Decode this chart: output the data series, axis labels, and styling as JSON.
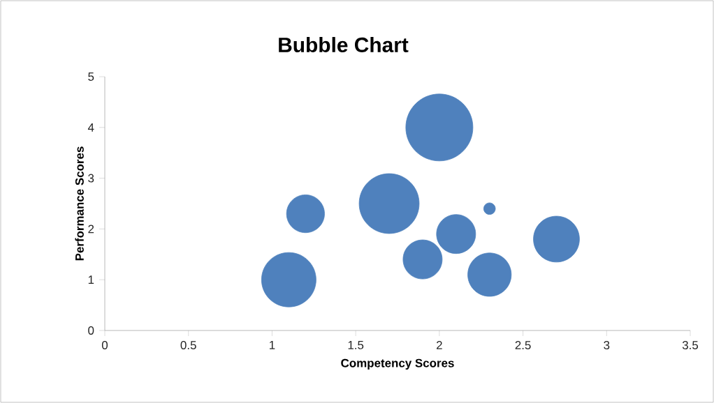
{
  "chart_data": {
    "type": "bubble",
    "title": "Bubble Chart",
    "xlabel": "Competency  Scores",
    "ylabel": "Performance Scores",
    "color": "#4f81bd",
    "x": [
      1.1,
      1.2,
      1.7,
      1.9,
      2.0,
      2.1,
      2.3,
      2.3,
      2.7
    ],
    "values": [
      1.0,
      2.3,
      2.5,
      1.4,
      4.0,
      1.9,
      1.1,
      2.4,
      1.8
    ],
    "sizes": [
      0.66,
      0.32,
      0.8,
      0.34,
      1,
      0.34,
      0.42,
      0.03,
      0.47
    ],
    "xlim": [
      0,
      3.5
    ],
    "ylim": [
      0,
      5
    ],
    "xticks": [
      0,
      0.5,
      1,
      1.5,
      2,
      2.5,
      3,
      3.5
    ],
    "yticks": [
      0,
      1,
      2,
      3,
      4,
      5
    ],
    "grid": false
  }
}
